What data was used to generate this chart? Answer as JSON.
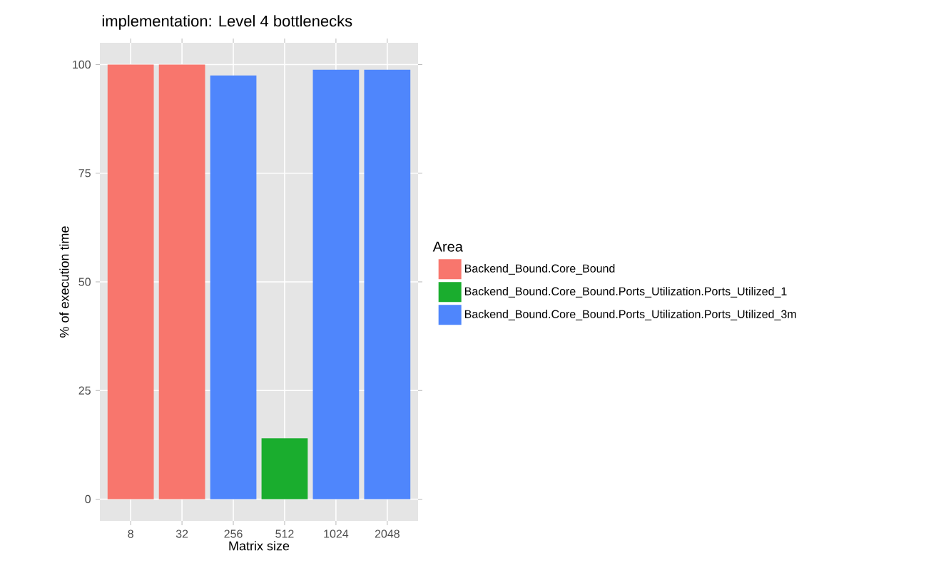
{
  "chart_data": {
    "type": "bar",
    "title": "implementation: Level 4 bottlenecks",
    "xlabel": "Matrix size",
    "ylabel": "% of execution time",
    "legend_title": "Area",
    "categories": [
      "8",
      "32",
      "256",
      "512",
      "1024",
      "2048"
    ],
    "series": [
      {
        "name": "Backend_Bound.Core_Bound",
        "color": "#f8766d",
        "values": [
          100,
          100,
          null,
          null,
          null,
          null
        ]
      },
      {
        "name": "Backend_Bound.Core_Bound.Ports_Utilization.Ports_Utilized_1",
        "color": "#1aad2e",
        "values": [
          null,
          null,
          null,
          14,
          null,
          null
        ]
      },
      {
        "name": "Backend_Bound.Core_Bound.Ports_Utilization.Ports_Utilized_3m",
        "color": "#4f86fc",
        "values": [
          null,
          null,
          97.5,
          null,
          98.8,
          98.8
        ]
      }
    ],
    "ylim": [
      -5,
      105
    ],
    "yticks": [
      0,
      25,
      50,
      75,
      100
    ],
    "grid": true,
    "legend": "right"
  }
}
